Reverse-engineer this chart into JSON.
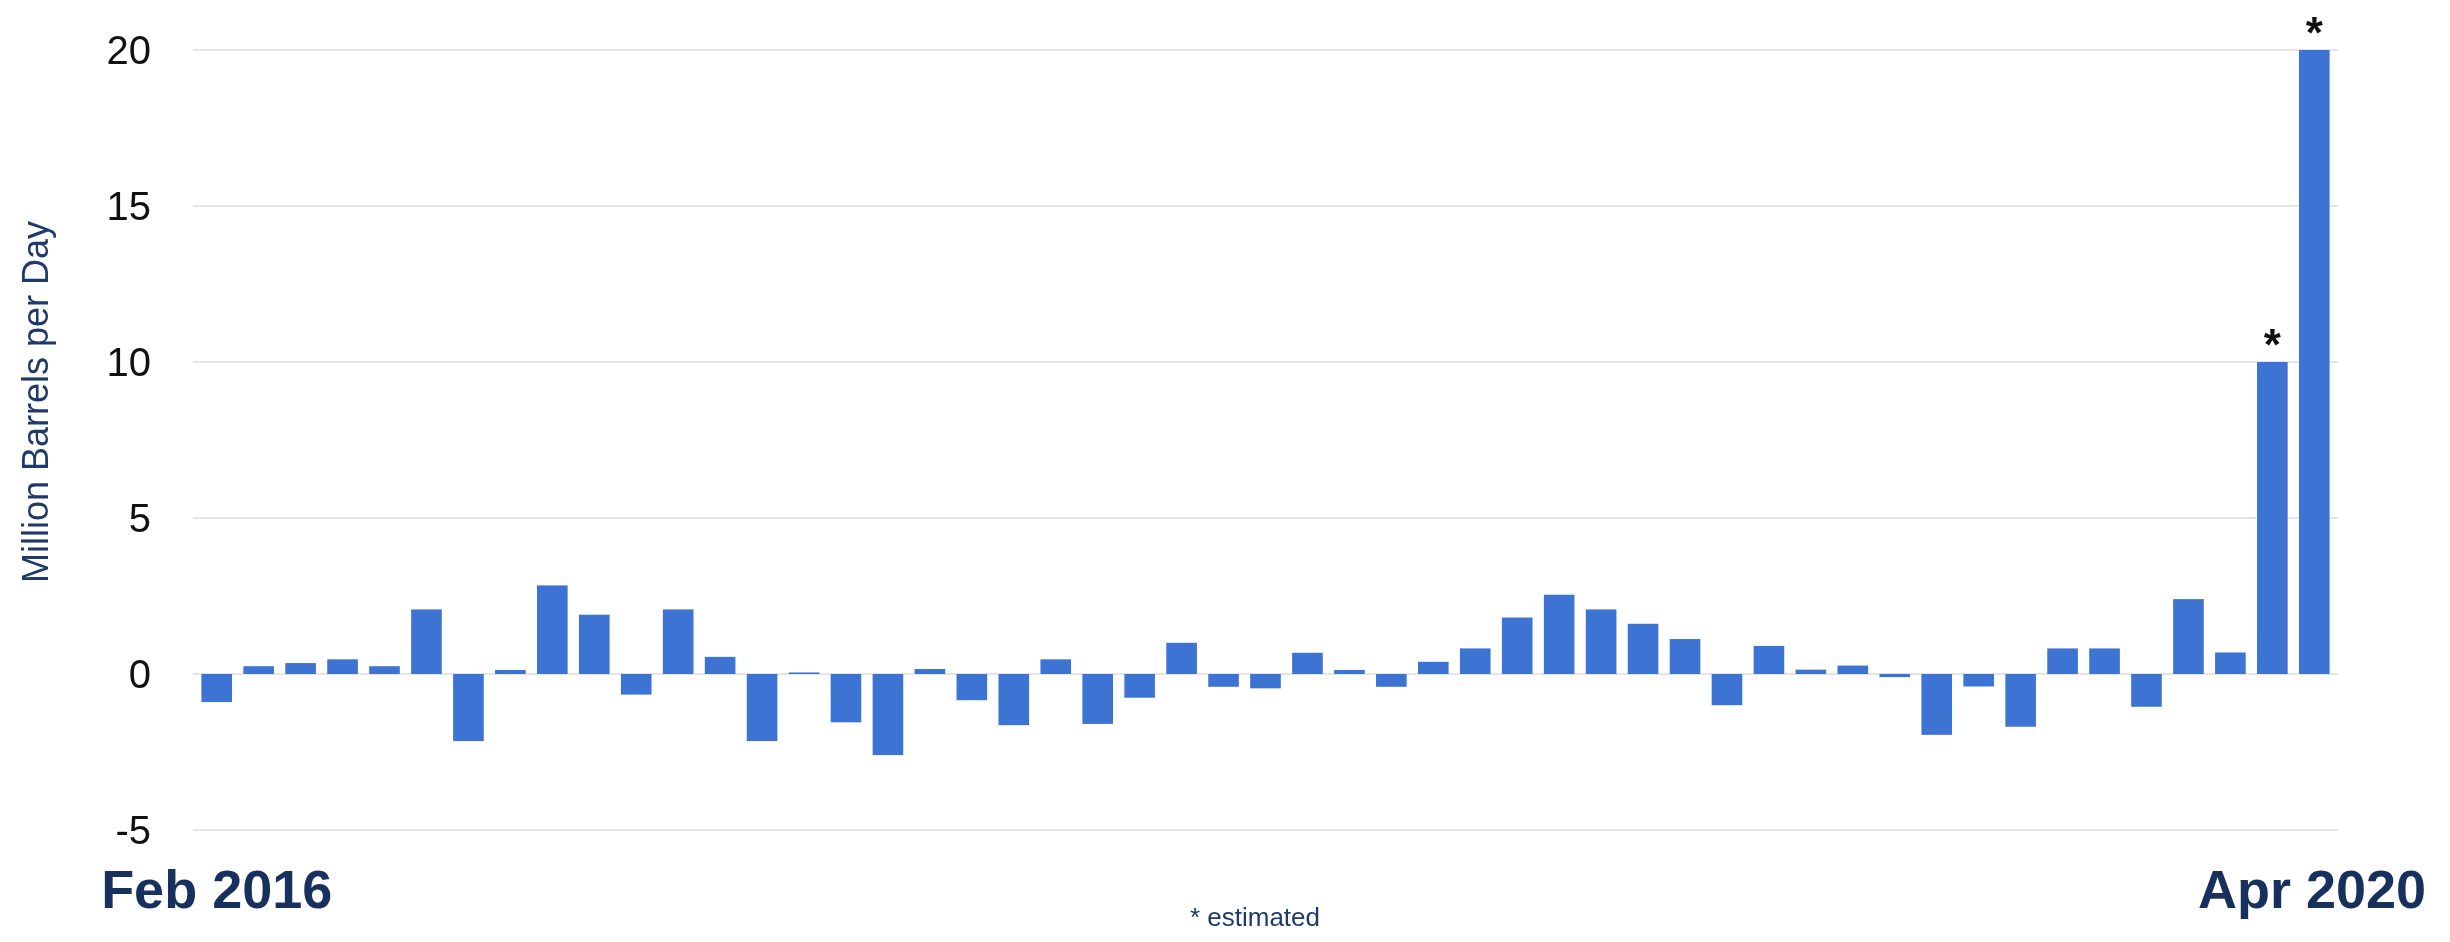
{
  "chart_data": {
    "type": "bar",
    "ylabel": "Million Barrels per Day",
    "categories": [
      "Feb 2016",
      null,
      null,
      null,
      null,
      null,
      null,
      null,
      null,
      null,
      null,
      null,
      null,
      null,
      null,
      null,
      null,
      null,
      null,
      null,
      null,
      null,
      null,
      null,
      null,
      null,
      null,
      null,
      null,
      null,
      null,
      null,
      null,
      null,
      null,
      null,
      null,
      null,
      null,
      null,
      null,
      null,
      null,
      null,
      null,
      null,
      null,
      null,
      null,
      null,
      "Apr 2020"
    ],
    "values": [
      -0.9,
      0.25,
      0.35,
      0.47,
      0.25,
      2.07,
      -2.15,
      0.13,
      2.84,
      1.9,
      -0.66,
      2.07,
      0.55,
      -2.15,
      0.05,
      -1.55,
      -2.6,
      0.16,
      -0.84,
      -1.64,
      0.47,
      -1.6,
      -0.76,
      1.0,
      -0.41,
      -0.46,
      0.68,
      0.13,
      -0.41,
      0.39,
      0.82,
      1.81,
      2.54,
      2.07,
      1.61,
      1.12,
      -1.0,
      0.9,
      0.14,
      0.27,
      -0.1,
      -1.95,
      -0.4,
      -1.69,
      0.82,
      0.82,
      -1.05,
      2.4,
      0.69,
      10,
      20
    ],
    "value_labels": [
      null,
      null,
      null,
      null,
      null,
      null,
      null,
      null,
      null,
      null,
      null,
      null,
      null,
      null,
      null,
      null,
      null,
      null,
      null,
      null,
      null,
      null,
      null,
      null,
      null,
      null,
      null,
      null,
      null,
      null,
      null,
      null,
      null,
      null,
      null,
      null,
      null,
      null,
      null,
      null,
      null,
      null,
      null,
      null,
      null,
      null,
      null,
      null,
      null,
      "*",
      "*"
    ],
    "color": "#3d74d3",
    "ylim": [
      -5,
      20
    ],
    "yticks": [
      -5,
      0,
      5,
      10,
      15,
      20
    ],
    "grid": "y",
    "annotations": [
      "* estimated"
    ]
  }
}
